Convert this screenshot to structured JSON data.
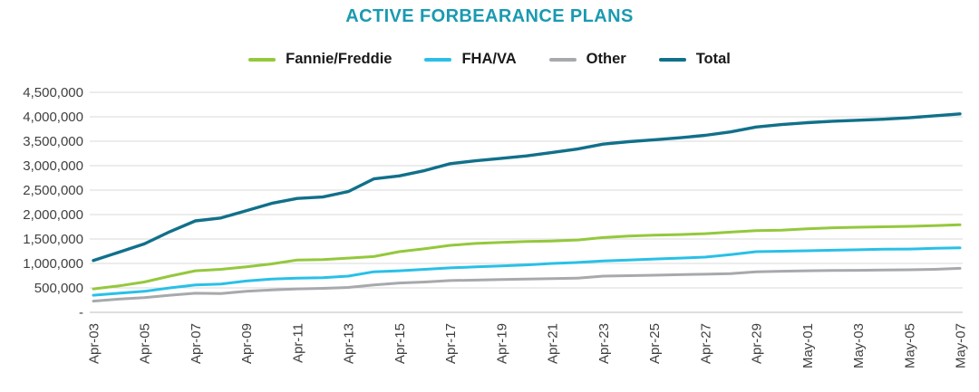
{
  "chart_data": {
    "type": "line",
    "title": "ACTIVE FORBEARANCE PLANS",
    "title_color": "#1A9AB0",
    "grid": true,
    "legend_position": "top",
    "ylim": [
      0,
      4500000
    ],
    "y_tick_step": 500000,
    "y_zero_label": "-",
    "y_tick_labels": [
      "-",
      "500,000",
      "1,000,000",
      "1,500,000",
      "2,000,000",
      "2,500,000",
      "3,000,000",
      "3,500,000",
      "4,000,000",
      "4,500,000"
    ],
    "x": [
      "Apr-03",
      "Apr-04",
      "Apr-05",
      "Apr-06",
      "Apr-07",
      "Apr-08",
      "Apr-09",
      "Apr-10",
      "Apr-11",
      "Apr-12",
      "Apr-13",
      "Apr-14",
      "Apr-15",
      "Apr-16",
      "Apr-17",
      "Apr-18",
      "Apr-19",
      "Apr-20",
      "Apr-21",
      "Apr-22",
      "Apr-23",
      "Apr-24",
      "Apr-25",
      "Apr-26",
      "Apr-27",
      "Apr-28",
      "Apr-29",
      "Apr-30",
      "May-01",
      "May-02",
      "May-03",
      "May-04",
      "May-05",
      "May-06",
      "May-07"
    ],
    "x_tick_labels": [
      "Apr-03",
      "Apr-05",
      "Apr-07",
      "Apr-09",
      "Apr-11",
      "Apr-13",
      "Apr-15",
      "Apr-17",
      "Apr-19",
      "Apr-21",
      "Apr-23",
      "Apr-25",
      "Apr-27",
      "Apr-29",
      "May-01",
      "May-03",
      "May-05",
      "May-07"
    ],
    "series": [
      {
        "name": "Fannie/Freddie",
        "color": "#94C83C",
        "values": [
          480000,
          540000,
          620000,
          740000,
          850000,
          880000,
          930000,
          990000,
          1070000,
          1080000,
          1110000,
          1140000,
          1240000,
          1300000,
          1370000,
          1410000,
          1430000,
          1450000,
          1460000,
          1480000,
          1530000,
          1560000,
          1580000,
          1590000,
          1610000,
          1640000,
          1670000,
          1680000,
          1710000,
          1730000,
          1740000,
          1750000,
          1760000,
          1775000,
          1790000
        ]
      },
      {
        "name": "FHA/VA",
        "color": "#29C0E7",
        "values": [
          350000,
          390000,
          430000,
          500000,
          560000,
          580000,
          640000,
          680000,
          700000,
          710000,
          740000,
          830000,
          850000,
          880000,
          910000,
          930000,
          950000,
          970000,
          1000000,
          1020000,
          1050000,
          1070000,
          1090000,
          1110000,
          1130000,
          1180000,
          1240000,
          1250000,
          1260000,
          1270000,
          1280000,
          1290000,
          1295000,
          1310000,
          1320000
        ]
      },
      {
        "name": "Other",
        "color": "#A7A9AC",
        "values": [
          230000,
          270000,
          300000,
          350000,
          390000,
          385000,
          430000,
          460000,
          480000,
          490000,
          510000,
          560000,
          600000,
          620000,
          650000,
          660000,
          670000,
          680000,
          690000,
          700000,
          740000,
          750000,
          760000,
          770000,
          780000,
          790000,
          830000,
          840000,
          850000,
          855000,
          860000,
          865000,
          870000,
          880000,
          900000
        ]
      },
      {
        "name": "Total",
        "color": "#11708A",
        "values": [
          1060000,
          1230000,
          1400000,
          1650000,
          1870000,
          1930000,
          2080000,
          2230000,
          2330000,
          2360000,
          2470000,
          2730000,
          2790000,
          2900000,
          3040000,
          3100000,
          3150000,
          3200000,
          3270000,
          3340000,
          3440000,
          3490000,
          3530000,
          3570000,
          3620000,
          3690000,
          3790000,
          3840000,
          3880000,
          3910000,
          3930000,
          3950000,
          3980000,
          4020000,
          4060000
        ]
      }
    ]
  }
}
